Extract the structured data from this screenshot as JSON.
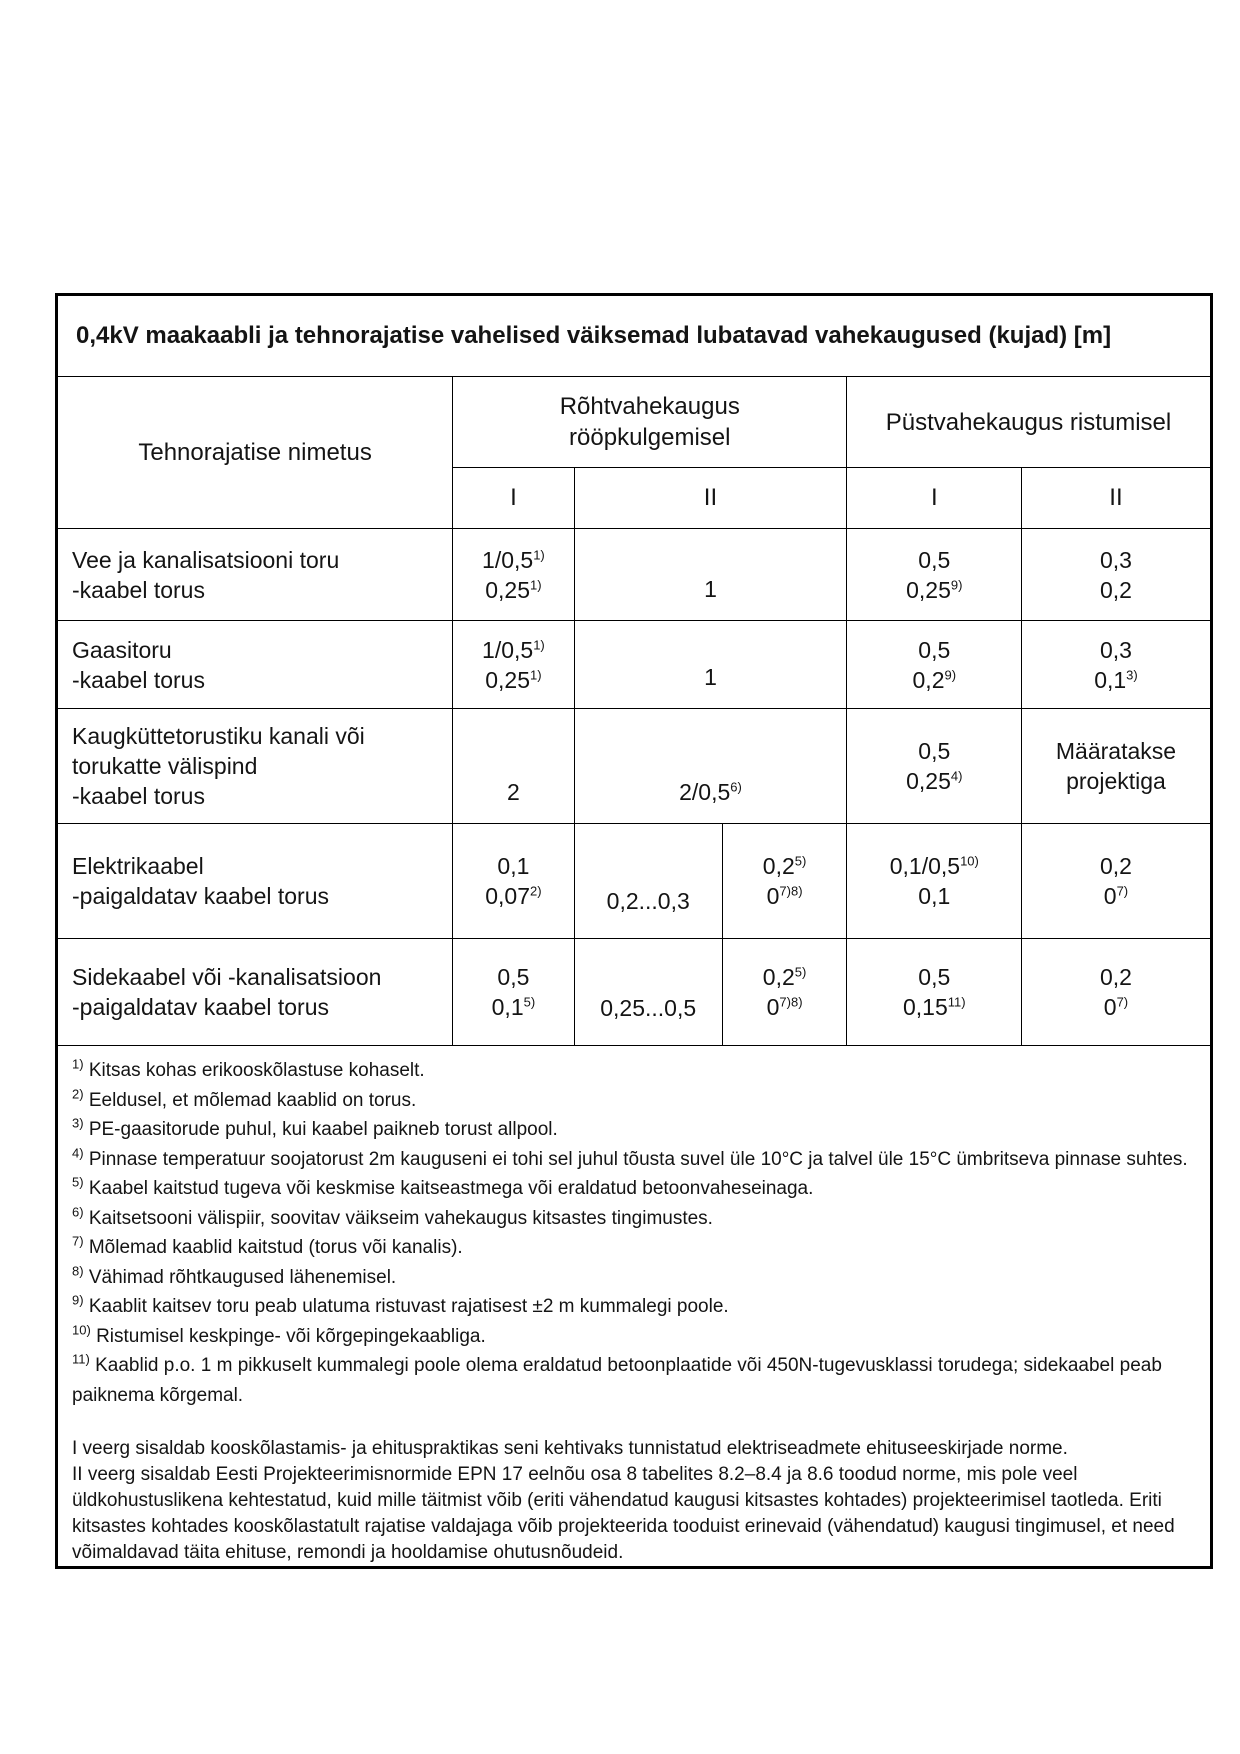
{
  "title": "0,4kV maakaabli ja tehnorajatise vahelised väiksemad lubatavad vahekaugused (kujad) [m]",
  "table": {
    "name_header": "Tehnorajatise nimetus",
    "group_headers": [
      {
        "line1": "Rõhtvahekaugus",
        "line2": "rööpkulgemisel"
      },
      {
        "line1": "Püstvahekaugus ristumisel"
      }
    ],
    "sub_headers": [
      "I",
      "II",
      "I",
      "II"
    ],
    "rows": [
      {
        "name_lines": [
          "Vee ja kanalisatsiooni toru",
          "-kaabel torus"
        ],
        "cells": [
          {
            "lines": [
              [
                "1/0,5",
                {
                  "sup": "1)"
                }
              ],
              [
                "0,25",
                {
                  "sup": "1)"
                }
              ]
            ]
          },
          {
            "cs": 2,
            "v": "b",
            "lines": [
              [
                "1"
              ]
            ]
          },
          {
            "lines": [
              [
                "0,5"
              ],
              [
                "0,25",
                {
                  "sup": "9)"
                }
              ]
            ]
          },
          {
            "lines": [
              [
                "0,3"
              ],
              [
                "0,2"
              ]
            ]
          }
        ]
      },
      {
        "name_lines": [
          "Gaasitoru",
          "-kaabel torus"
        ],
        "cells": [
          {
            "lines": [
              [
                "1/0,5",
                {
                  "sup": "1)"
                }
              ],
              [
                "0,25",
                {
                  "sup": "1)"
                }
              ]
            ]
          },
          {
            "cs": 2,
            "v": "b",
            "lines": [
              [
                "1"
              ]
            ]
          },
          {
            "lines": [
              [
                "0,5"
              ],
              [
                "0,2",
                {
                  "sup": "9)"
                }
              ]
            ]
          },
          {
            "lines": [
              [
                "0,3"
              ],
              [
                "0,1",
                {
                  "sup": "3)"
                }
              ]
            ]
          }
        ]
      },
      {
        "name_lines": [
          "Kaugküttetorustiku kanali või",
          "torukatte välispind",
          "-kaabel torus"
        ],
        "cells": [
          {
            "v": "b",
            "lines": [
              [
                "2"
              ]
            ]
          },
          {
            "cs": 2,
            "v": "b",
            "lines": [
              [
                "2/0,5",
                {
                  "sup": "6)"
                }
              ]
            ]
          },
          {
            "lines": [
              [
                "0,5"
              ],
              [
                "0,25",
                {
                  "sup": "4)"
                }
              ]
            ]
          },
          {
            "lines": [
              [
                "Määratakse"
              ],
              [
                "projektiga"
              ]
            ]
          }
        ]
      },
      {
        "name_lines": [
          "Elektrikaabel",
          "-paigaldatav kaabel torus"
        ],
        "cells": [
          {
            "lines": [
              [
                "0,1"
              ],
              [
                "0,07",
                {
                  "sup": "2)"
                }
              ]
            ]
          },
          {
            "v": "b2",
            "lines": [
              [
                "0,2...0,3"
              ]
            ]
          },
          {
            "lines": [
              [
                "0,2",
                {
                  "sup": "5)"
                }
              ],
              [
                "0",
                {
                  "sup": "7)8)"
                }
              ]
            ]
          },
          {
            "lines": [
              [
                "0,1/0,5",
                {
                  "sup": "10)"
                }
              ],
              [
                "0,1"
              ]
            ]
          },
          {
            "lines": [
              [
                "0,2"
              ],
              [
                "0",
                {
                  "sup": "7)"
                }
              ]
            ]
          }
        ]
      },
      {
        "name_lines": [
          "Sidekaabel või -kanalisatsioon",
          "-paigaldatav kaabel torus"
        ],
        "cells": [
          {
            "lines": [
              [
                "0,5"
              ],
              [
                "0,1",
                {
                  "sup": "5)"
                }
              ]
            ]
          },
          {
            "v": "b2",
            "lines": [
              [
                "0,25...0,5"
              ]
            ]
          },
          {
            "lines": [
              [
                "0,2",
                {
                  "sup": "5)"
                }
              ],
              [
                "0",
                {
                  "sup": "7)8)"
                }
              ]
            ]
          },
          {
            "lines": [
              [
                "0,5"
              ],
              [
                "0,15",
                {
                  "sup": "11)"
                }
              ]
            ]
          },
          {
            "lines": [
              [
                "0,2"
              ],
              [
                "0",
                {
                  "sup": "7)"
                }
              ]
            ]
          }
        ]
      }
    ]
  },
  "footnotes": [
    {
      "marker": "1)",
      "text": "Kitsas kohas erikooskõlastuse kohaselt."
    },
    {
      "marker": "2)",
      "text": "Eeldusel, et mõlemad kaablid on torus."
    },
    {
      "marker": "3)",
      "text": "PE-gaasitorude puhul, kui kaabel paikneb torust allpool."
    },
    {
      "marker": "4)",
      "text": "Pinnase temperatuur soojatorust 2m kauguseni ei tohi sel juhul tõusta suvel üle 10°C ja talvel üle 15°C ümbritseva pinnase suhtes."
    },
    {
      "marker": "5)",
      "text": "Kaabel kaitstud tugeva või keskmise kaitseastmega või eraldatud betoonvaheseinaga."
    },
    {
      "marker": "6)",
      "text": "Kaitsetsooni välispiir, soovitav väikseim vahekaugus kitsastes tingimustes."
    },
    {
      "marker": "7)",
      "text": "Mõlemad kaablid kaitstud (torus või kanalis)."
    },
    {
      "marker": "8)",
      "text": "Vähimad rõhtkaugused lähenemisel."
    },
    {
      "marker": "9)",
      "text": "Kaablit kaitsev toru peab ulatuma ristuvast rajatisest ±2 m kummalegi poole."
    },
    {
      "marker": "10)",
      "text": "Ristumisel keskpinge- või kõrgepingekaabliga."
    },
    {
      "marker": "11)",
      "text": "Kaablid p.o. 1 m pikkuselt kummalegi poole olema eraldatud betoonplaatide või 450N-tugevusklassi torudega; sidekaabel peab paiknema kõrgemal."
    }
  ],
  "paragraphs": [
    "I veerg sisaldab kooskõlastamis- ja ehituspraktikas seni kehtivaks tunnistatud elektriseadmete ehituseeskirjade norme.",
    "II veerg sisaldab Eesti Projekteerimisnormide EPN 17 eelnõu osa 8 tabelites 8.2–8.4 ja 8.6 toodud norme, mis pole veel üldkohustuslikena kehtestatud, kuid mille täitmist võib (eriti vähendatud kaugusi kitsastes kohtades) projekteerimisel taotleda. Eriti kitsastes kohtades kooskõlastatult rajatise valdajaga võib projekteerida tooduist erinevaid (vähendatud) kaugusi tingimusel, et need võimaldavad täita ehituse, remondi ja hooldamise ohutusnõudeid."
  ]
}
